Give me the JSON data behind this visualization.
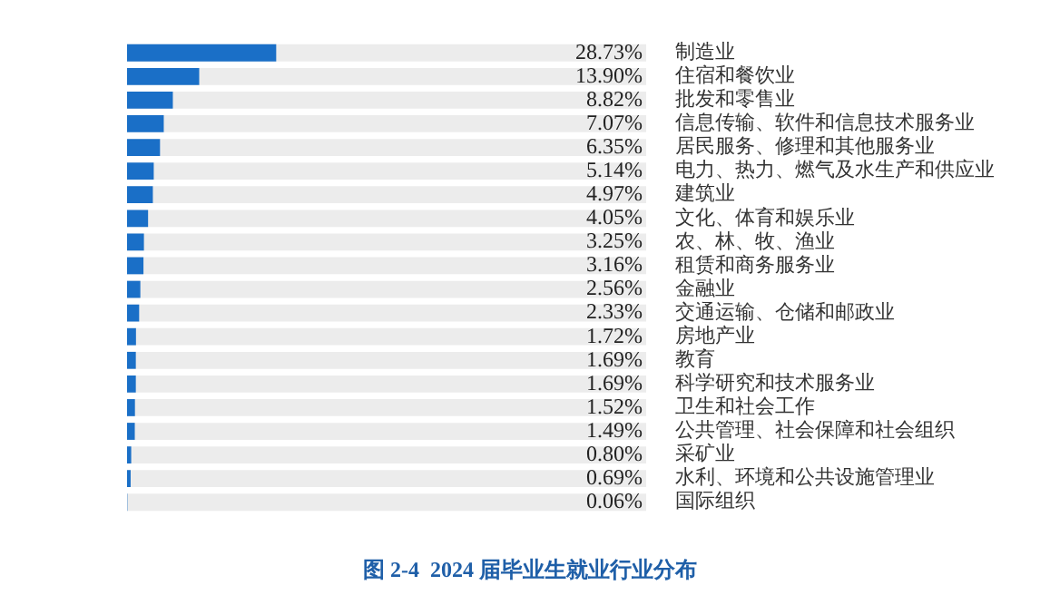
{
  "chart_data": {
    "type": "bar",
    "orientation": "horizontal",
    "title": "图 2-4  2024 届毕业生就业行业分布",
    "categories": [
      "制造业",
      "住宿和餐饮业",
      "批发和零售业",
      "信息传输、软件和信息技术服务业",
      "居民服务、修理和其他服务业",
      "电力、热力、燃气及水生产和供应业",
      "建筑业",
      "文化、体育和娱乐业",
      "农、林、牧、渔业",
      "租赁和商务服务业",
      "金融业",
      "交通运输、仓储和邮政业",
      "房地产业",
      "教育",
      "科学研究和技术服务业",
      "卫生和社会工作",
      "公共管理、社会保障和社会组织",
      "采矿业",
      "水利、环境和公共设施管理业",
      "国际组织"
    ],
    "values": [
      28.73,
      13.9,
      8.82,
      7.07,
      6.35,
      5.14,
      4.97,
      4.05,
      3.25,
      3.16,
      2.56,
      2.33,
      1.72,
      1.69,
      1.69,
      1.52,
      1.49,
      0.8,
      0.69,
      0.06
    ],
    "value_labels": [
      "28.73%",
      "13.90%",
      "8.82%",
      "7.07%",
      "6.35%",
      "5.14%",
      "4.97%",
      "4.05%",
      "3.25%",
      "3.16%",
      "2.56%",
      "2.33%",
      "1.72%",
      "1.69%",
      "1.69%",
      "1.52%",
      "1.49%",
      "0.80%",
      "0.69%",
      "0.06%"
    ],
    "color": "#1a6fc7",
    "xlim": [
      0,
      100
    ],
    "legend": false
  }
}
